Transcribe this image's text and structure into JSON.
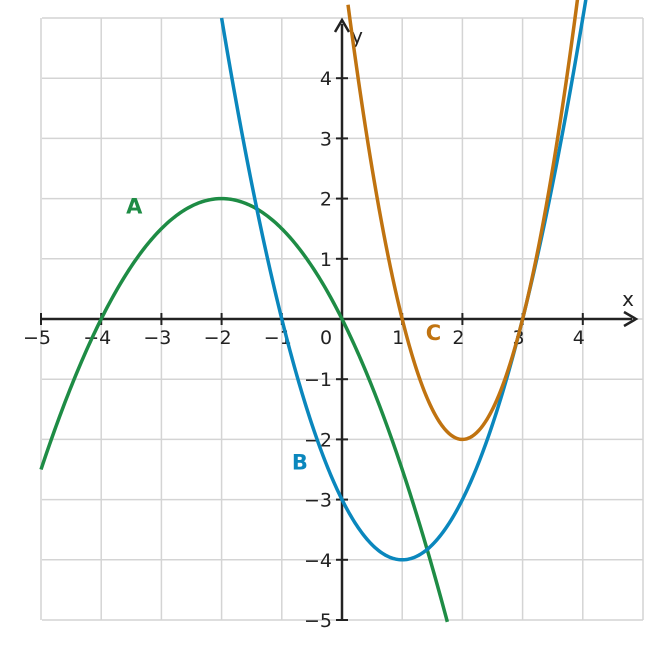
{
  "chart_data": {
    "type": "line",
    "title": "",
    "xlabel": "x",
    "ylabel": "y",
    "xlim": [
      -5,
      5
    ],
    "ylim": [
      -5,
      5
    ],
    "grid": true,
    "x_ticks": [
      {
        "value": -5,
        "label": "−5"
      },
      {
        "value": -4,
        "label": "−4"
      },
      {
        "value": -3,
        "label": "−3"
      },
      {
        "value": -2,
        "label": "−2"
      },
      {
        "value": -1,
        "label": "−1"
      },
      {
        "value": 1,
        "label": "1"
      },
      {
        "value": 2,
        "label": "2"
      },
      {
        "value": 3,
        "label": "3"
      },
      {
        "value": 4,
        "label": "4"
      }
    ],
    "y_ticks": [
      {
        "value": 4,
        "label": "4"
      },
      {
        "value": 3,
        "label": "3"
      },
      {
        "value": 2,
        "label": "2"
      },
      {
        "value": 1,
        "label": "1"
      },
      {
        "value": -1,
        "label": "−1"
      },
      {
        "value": -2,
        "label": "−2"
      },
      {
        "value": -3,
        "label": "−3"
      },
      {
        "value": -4,
        "label": "−4"
      },
      {
        "value": -5,
        "label": "−5"
      }
    ],
    "origin_label": "0",
    "series": [
      {
        "name": "A",
        "color": "#1e8c45",
        "coeffs": [
          -0.5,
          -2,
          0
        ],
        "domain": [
          -5,
          1.75
        ],
        "label_at": [
          -3.45,
          1.75
        ]
      },
      {
        "name": "B",
        "color": "#0a87bd",
        "coeffs": [
          1,
          -2,
          -3
        ],
        "domain": [
          -2.0,
          4.05
        ],
        "label_at": [
          -0.7,
          -2.5
        ]
      },
      {
        "name": "C",
        "color": "#c07310",
        "coeffs": [
          2,
          -8,
          6
        ],
        "domain": [
          0.1,
          3.95
        ],
        "label_at": [
          1.52,
          -0.35
        ]
      }
    ]
  }
}
